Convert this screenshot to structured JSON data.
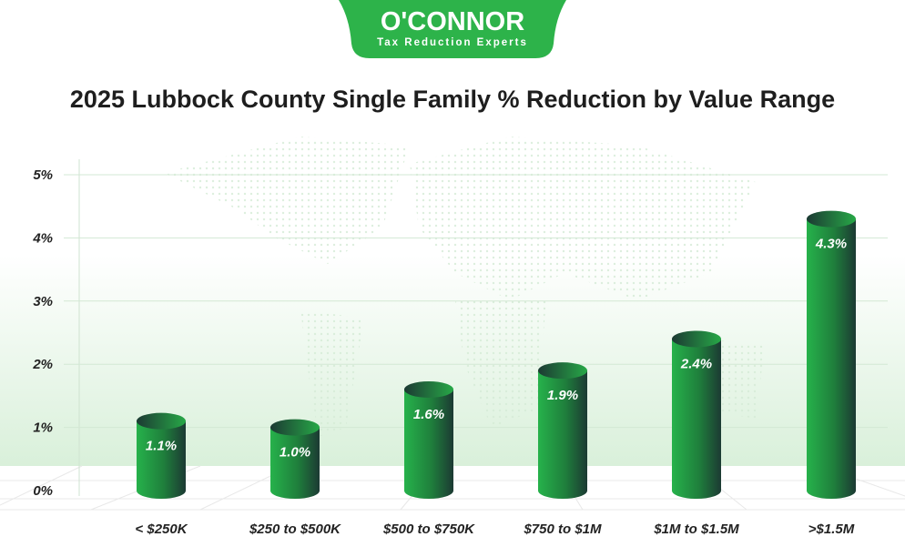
{
  "logo": {
    "name": "O'CONNOR",
    "tagline": "Tax Reduction Experts",
    "brand_color": "#2db34a"
  },
  "chart_data": {
    "type": "bar",
    "style": "3d-cylinder",
    "title": "2025 Lubbock County Single Family % Reduction by Value Range",
    "categories": [
      "< $250K",
      "$250 to $500K",
      "$500 to $750K",
      "$750 to $1M",
      "$1M to $1.5M",
      ">$1.5M"
    ],
    "values": [
      1.1,
      1.0,
      1.6,
      1.9,
      2.4,
      4.3
    ],
    "data_labels": [
      "1.1%",
      "1.0%",
      "1.6%",
      "1.9%",
      "2.4%",
      "4.3%"
    ],
    "y_ticks": [
      "0%",
      "1%",
      "2%",
      "3%",
      "4%",
      "5%"
    ],
    "ylim": [
      0,
      5
    ],
    "grid": true,
    "bar_color": "#22a043"
  }
}
